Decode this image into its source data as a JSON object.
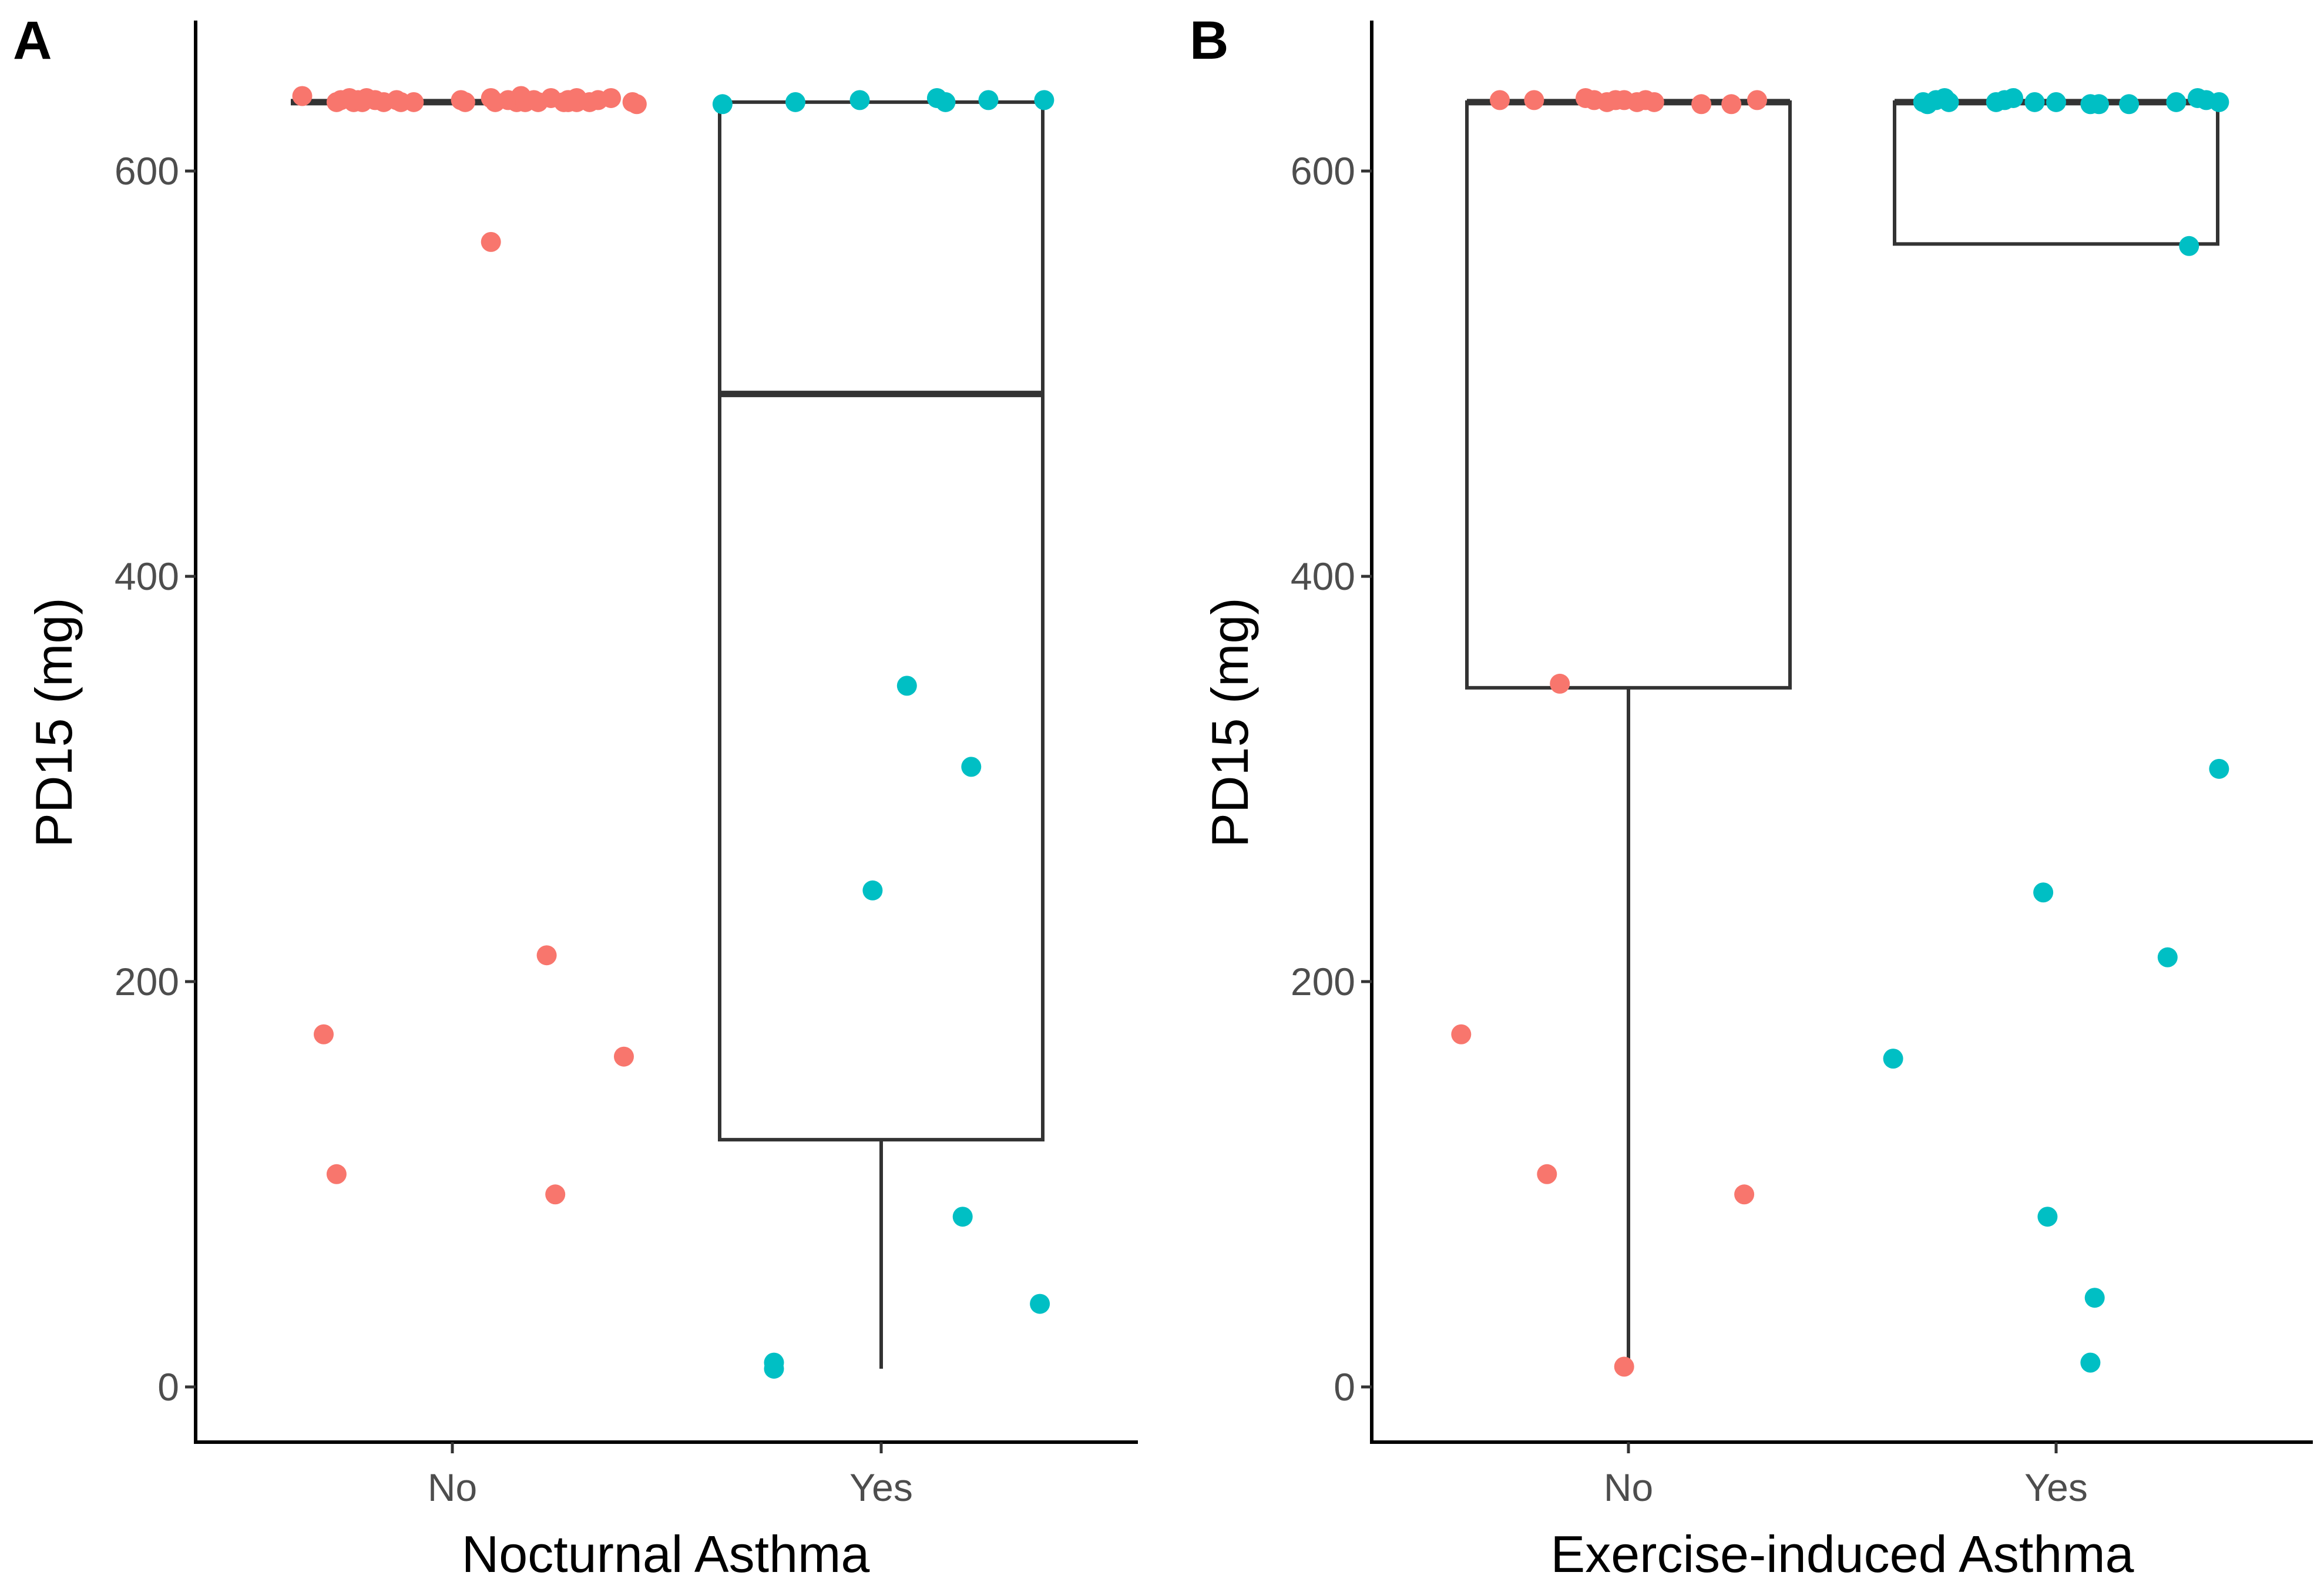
{
  "chart_data": [
    {
      "type": "box",
      "panel_label": "A",
      "xlabel": "Nocturnal Asthma",
      "ylabel": "PD15 (mg)",
      "ylim": [
        -20,
        667
      ],
      "yticks": [
        0,
        200,
        400,
        600
      ],
      "categories": [
        "No",
        "Yes"
      ],
      "series": [
        {
          "name": "No",
          "color": "#F8766D",
          "box": {
            "q1": 634,
            "median": 634,
            "q3": 634,
            "whisker_low": 634,
            "whisker_high": 634
          },
          "points": [
            {
              "x": -0.35,
              "y": 637
            },
            {
              "x": -0.27,
              "y": 634
            },
            {
              "x": -0.26,
              "y": 635
            },
            {
              "x": -0.24,
              "y": 636
            },
            {
              "x": -0.23,
              "y": 634
            },
            {
              "x": -0.22,
              "y": 635
            },
            {
              "x": -0.21,
              "y": 634
            },
            {
              "x": -0.2,
              "y": 636
            },
            {
              "x": -0.18,
              "y": 635
            },
            {
              "x": -0.16,
              "y": 634
            },
            {
              "x": -0.13,
              "y": 635
            },
            {
              "x": -0.12,
              "y": 634
            },
            {
              "x": -0.09,
              "y": 634
            },
            {
              "x": 0.02,
              "y": 635
            },
            {
              "x": 0.03,
              "y": 634
            },
            {
              "x": 0.09,
              "y": 636
            },
            {
              "x": 0.1,
              "y": 634
            },
            {
              "x": 0.13,
              "y": 635
            },
            {
              "x": 0.15,
              "y": 634
            },
            {
              "x": 0.16,
              "y": 637
            },
            {
              "x": 0.17,
              "y": 634
            },
            {
              "x": 0.19,
              "y": 635
            },
            {
              "x": 0.2,
              "y": 634
            },
            {
              "x": 0.23,
              "y": 636
            },
            {
              "x": 0.26,
              "y": 634
            },
            {
              "x": 0.27,
              "y": 635
            },
            {
              "x": 0.29,
              "y": 634
            },
            {
              "x": 0.27,
              "y": 635
            },
            {
              "x": 0.27,
              "y": 634
            },
            {
              "x": 0.29,
              "y": 636
            },
            {
              "x": 0.32,
              "y": 634
            },
            {
              "x": 0.34,
              "y": 635
            },
            {
              "x": 0.37,
              "y": 636
            },
            {
              "x": 0.42,
              "y": 634
            },
            {
              "x": 0.43,
              "y": 633
            },
            {
              "x": 0.09,
              "y": 565
            },
            {
              "x": 0.22,
              "y": 213
            },
            {
              "x": -0.3,
              "y": 174
            },
            {
              "x": 0.4,
              "y": 163
            },
            {
              "x": -0.27,
              "y": 105
            },
            {
              "x": 0.24,
              "y": 95
            }
          ]
        },
        {
          "name": "Yes",
          "color": "#00BFC4",
          "box": {
            "q1": 122,
            "median": 490,
            "q3": 634,
            "whisker_low": 9,
            "whisker_high": 634
          },
          "points": [
            {
              "x": -0.37,
              "y": 633
            },
            {
              "x": -0.2,
              "y": 634
            },
            {
              "x": -0.05,
              "y": 635
            },
            {
              "x": 0.13,
              "y": 636
            },
            {
              "x": 0.15,
              "y": 634
            },
            {
              "x": 0.25,
              "y": 635
            },
            {
              "x": 0.38,
              "y": 635
            },
            {
              "x": 0.06,
              "y": 346
            },
            {
              "x": 0.21,
              "y": 306
            },
            {
              "x": -0.02,
              "y": 245
            },
            {
              "x": 0.19,
              "y": 84
            },
            {
              "x": 0.37,
              "y": 41
            },
            {
              "x": -0.25,
              "y": 12
            },
            {
              "x": -0.25,
              "y": 9
            }
          ]
        }
      ]
    },
    {
      "type": "box",
      "panel_label": "B",
      "xlabel": "Exercise-induced Asthma",
      "ylabel": "PD15 (mg)",
      "ylim": [
        -20,
        667
      ],
      "yticks": [
        0,
        200,
        400,
        600
      ],
      "categories": [
        "No",
        "Yes"
      ],
      "series": [
        {
          "name": "No",
          "color": "#F8766D",
          "box": {
            "q1": 345,
            "median": 634,
            "q3": 634,
            "whisker_low": 9,
            "whisker_high": 634
          },
          "points": [
            {
              "x": -0.3,
              "y": 635
            },
            {
              "x": -0.22,
              "y": 635
            },
            {
              "x": -0.1,
              "y": 636
            },
            {
              "x": -0.08,
              "y": 635
            },
            {
              "x": -0.05,
              "y": 634
            },
            {
              "x": -0.03,
              "y": 635
            },
            {
              "x": -0.01,
              "y": 635
            },
            {
              "x": 0.02,
              "y": 634
            },
            {
              "x": 0.04,
              "y": 635
            },
            {
              "x": 0.06,
              "y": 634
            },
            {
              "x": 0.17,
              "y": 633
            },
            {
              "x": 0.24,
              "y": 633
            },
            {
              "x": 0.3,
              "y": 635
            },
            {
              "x": -0.16,
              "y": 347
            },
            {
              "x": -0.39,
              "y": 174
            },
            {
              "x": -0.19,
              "y": 105
            },
            {
              "x": 0.27,
              "y": 95
            },
            {
              "x": -0.01,
              "y": 10
            }
          ]
        },
        {
          "name": "Yes",
          "color": "#00BFC4",
          "box": {
            "q1": 564,
            "median": 634,
            "q3": 634,
            "whisker_low": 564,
            "whisker_high": 634
          },
          "points": [
            {
              "x": -0.31,
              "y": 634
            },
            {
              "x": -0.3,
              "y": 633
            },
            {
              "x": -0.28,
              "y": 635
            },
            {
              "x": -0.26,
              "y": 636
            },
            {
              "x": -0.25,
              "y": 634
            },
            {
              "x": -0.14,
              "y": 634
            },
            {
              "x": -0.12,
              "y": 635
            },
            {
              "x": -0.1,
              "y": 636
            },
            {
              "x": -0.05,
              "y": 634
            },
            {
              "x": 0.0,
              "y": 634
            },
            {
              "x": 0.08,
              "y": 633
            },
            {
              "x": 0.1,
              "y": 633
            },
            {
              "x": 0.17,
              "y": 633
            },
            {
              "x": 0.28,
              "y": 634
            },
            {
              "x": 0.33,
              "y": 636
            },
            {
              "x": 0.35,
              "y": 635
            },
            {
              "x": 0.38,
              "y": 634
            },
            {
              "x": 0.31,
              "y": 563
            },
            {
              "x": 0.38,
              "y": 305
            },
            {
              "x": -0.03,
              "y": 244
            },
            {
              "x": 0.26,
              "y": 212
            },
            {
              "x": -0.38,
              "y": 162
            },
            {
              "x": -0.02,
              "y": 84
            },
            {
              "x": 0.09,
              "y": 44
            },
            {
              "x": 0.08,
              "y": 12
            }
          ]
        }
      ]
    }
  ]
}
